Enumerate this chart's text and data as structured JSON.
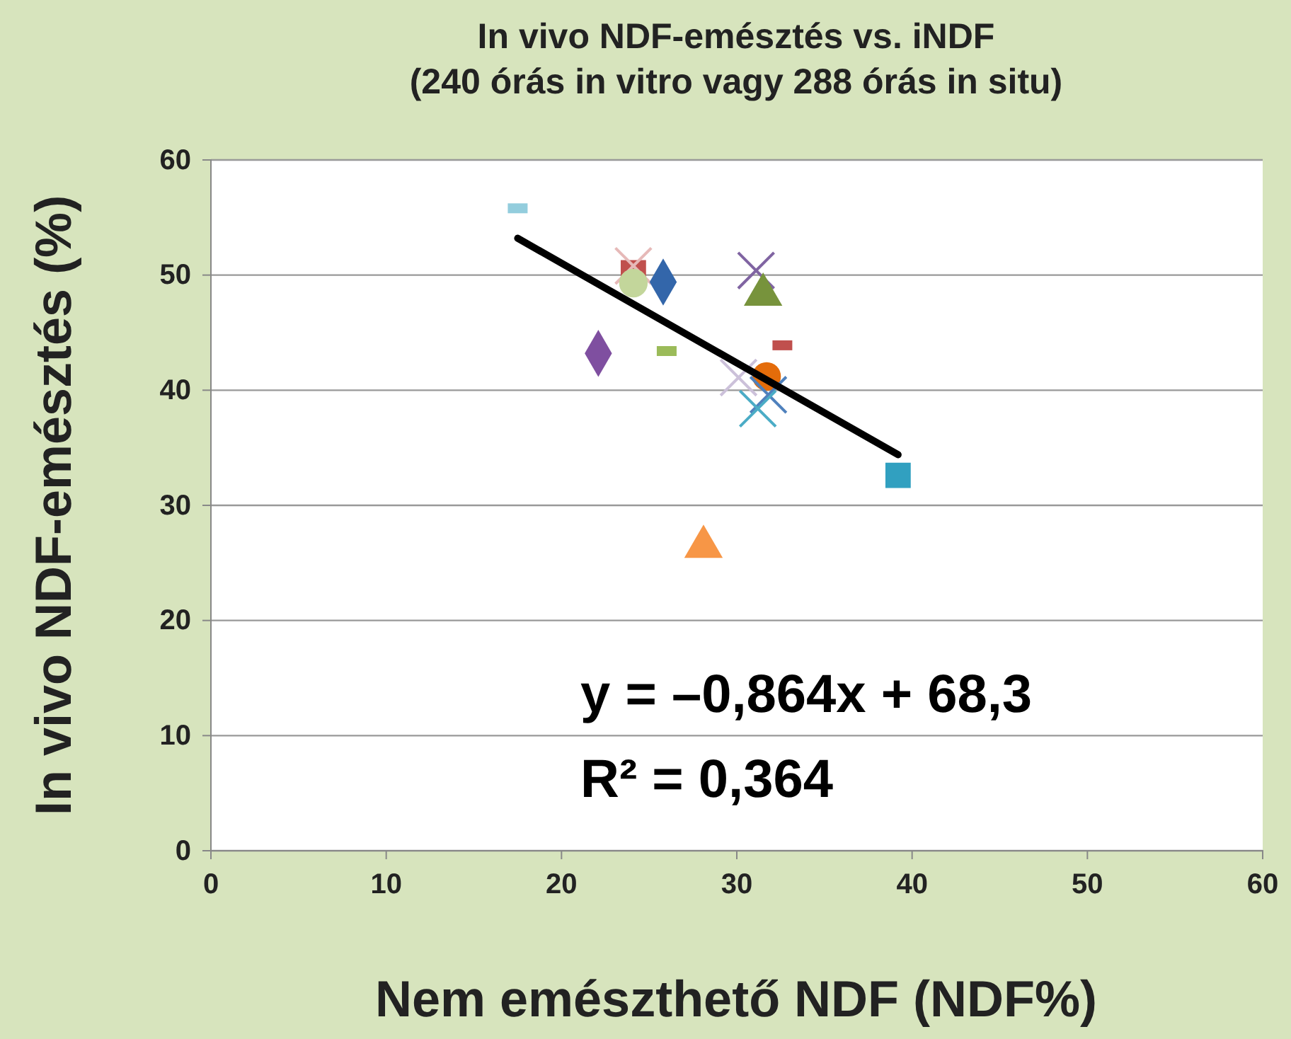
{
  "chart_data": {
    "type": "scatter",
    "title": "In vivo NDF-emésztés vs. iNDF",
    "subtitle": "(240 órás in vitro vagy 288 órás in situ)",
    "xlabel": "Nem emészthető NDF (NDF%)",
    "ylabel": "In vivo NDF-emésztés (%)",
    "xlim": [
      0,
      60
    ],
    "xticks": [
      0,
      10,
      20,
      30,
      40,
      50,
      60
    ],
    "ylim": [
      0,
      60
    ],
    "yticks": [
      0,
      10,
      20,
      30,
      40,
      50,
      60
    ],
    "grid": "y",
    "series": [
      {
        "color": "#93cddd",
        "x": [
          17.5
        ],
        "values": [
          55.8
        ]
      },
      {
        "color": "#c0504d",
        "marker": "square",
        "x": [
          24.1
        ],
        "values": [
          50.2
        ]
      },
      {
        "color": "#e6b9b8",
        "marker": "cross",
        "x": [
          24.1
        ],
        "values": [
          50.8
        ]
      },
      {
        "color": "#c3d69b",
        "marker": "circle",
        "x": [
          24.1
        ],
        "values": [
          49.3
        ]
      },
      {
        "color": "#3366aa",
        "marker": "diamond",
        "x": [
          25.8
        ],
        "values": [
          49.4
        ]
      },
      {
        "color": "#8064a2",
        "marker": "cross",
        "x": [
          31.1
        ],
        "values": [
          50.4
        ]
      },
      {
        "color": "#77933c",
        "marker": "triangle",
        "x": [
          31.5
        ],
        "values": [
          48.3
        ]
      },
      {
        "color": "#7f4fa0",
        "marker": "diamond",
        "x": [
          22.1
        ],
        "values": [
          43.2
        ]
      },
      {
        "color": "#9bbb59",
        "x": [
          26.0
        ],
        "values": [
          43.4
        ]
      },
      {
        "color": "#c0504d",
        "x": [
          32.6
        ],
        "values": [
          43.9
        ]
      },
      {
        "color": "#ccc1da",
        "marker": "cross",
        "x": [
          30.1
        ],
        "values": [
          41.1
        ]
      },
      {
        "color": "#e46c0a",
        "marker": "circle",
        "x": [
          31.7
        ],
        "values": [
          41.2
        ]
      },
      {
        "color": "#4f81bd",
        "marker": "cross",
        "x": [
          31.8
        ],
        "values": [
          39.6
        ]
      },
      {
        "color": "#4bacc6",
        "marker": "cross",
        "x": [
          31.2
        ],
        "values": [
          38.4
        ]
      },
      {
        "color": "#31a0c0",
        "marker": "square",
        "x": [
          39.2
        ],
        "values": [
          32.6
        ]
      },
      {
        "color": "#f79646",
        "marker": "triangle",
        "x": [
          28.1
        ],
        "values": [
          26.4
        ]
      },
      {
        "type": "line",
        "color": "#000000",
        "marker": "none",
        "x": [
          17.5,
          39.2
        ],
        "values": [
          53.2,
          34.4
        ]
      }
    ],
    "annotations": [
      "y = –0,864x + 68,3",
      "R² = 0,364"
    ]
  }
}
